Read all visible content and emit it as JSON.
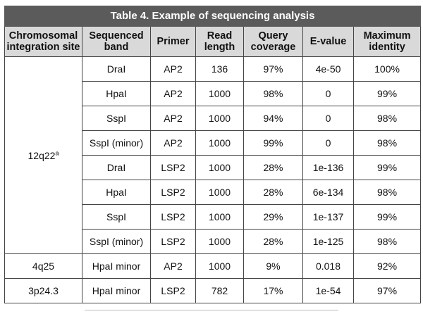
{
  "table": {
    "caption": "Table 4. Example of sequencing analysis",
    "headers": [
      {
        "line1": "Chromosomal",
        "line2": "integration site"
      },
      {
        "line1": "Sequenced",
        "line2": "band"
      },
      {
        "line1": "Primer",
        "line2": ""
      },
      {
        "line1": "Read",
        "line2": "length"
      },
      {
        "line1": "Query",
        "line2": "coverage"
      },
      {
        "line1": "E-value",
        "line2": ""
      },
      {
        "line1": "Maximum",
        "line2": "identity"
      }
    ],
    "groups": [
      {
        "site": "12q22",
        "site_sup": "a",
        "rows": [
          {
            "band": "DraI",
            "primer": "AP2",
            "read_length": "136",
            "coverage": "97%",
            "evalue": "4e-50",
            "identity": "100%"
          },
          {
            "band": "HpaI",
            "primer": "AP2",
            "read_length": "1000",
            "coverage": "98%",
            "evalue": "0",
            "identity": "99%"
          },
          {
            "band": "SspI",
            "primer": "AP2",
            "read_length": "1000",
            "coverage": "94%",
            "evalue": "0",
            "identity": "98%"
          },
          {
            "band": "SspI (minor)",
            "primer": "AP2",
            "read_length": "1000",
            "coverage": "99%",
            "evalue": "0",
            "identity": "98%"
          },
          {
            "band": "DraI",
            "primer": "LSP2",
            "read_length": "1000",
            "coverage": "28%",
            "evalue": "1e-136",
            "identity": "99%"
          },
          {
            "band": "HpaI",
            "primer": "LSP2",
            "read_length": "1000",
            "coverage": "28%",
            "evalue": "6e-134",
            "identity": "98%"
          },
          {
            "band": "SspI",
            "primer": "LSP2",
            "read_length": "1000",
            "coverage": "29%",
            "evalue": "1e-137",
            "identity": "99%"
          },
          {
            "band": "SspI (minor)",
            "primer": "LSP2",
            "read_length": "1000",
            "coverage": "28%",
            "evalue": "1e-125",
            "identity": "98%"
          }
        ]
      },
      {
        "site": "4q25",
        "site_sup": "",
        "rows": [
          {
            "band": "HpaI minor",
            "primer": "AP2",
            "read_length": "1000",
            "coverage": "9%",
            "evalue": "0.018",
            "identity": "92%"
          }
        ]
      },
      {
        "site": "3p24.3",
        "site_sup": "",
        "rows": [
          {
            "band": "HpaI minor",
            "primer": "LSP2",
            "read_length": "782",
            "coverage": "17%",
            "evalue": "1e-54",
            "identity": "97%"
          }
        ]
      }
    ]
  },
  "colors": {
    "caption_bg": "#5b5b5b",
    "header_bg": "#d9d9d9",
    "border": "#444444"
  }
}
